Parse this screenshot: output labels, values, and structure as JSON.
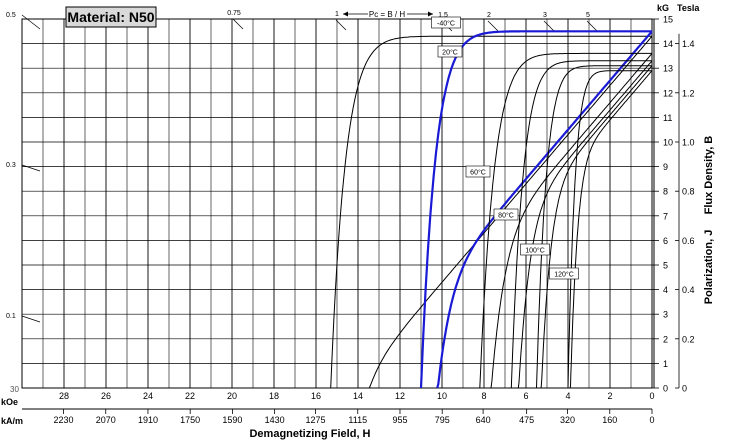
{
  "chart_data": {
    "type": "line",
    "title": "Material: N50",
    "x_axis": {
      "label": "Demagnetizing Field, H",
      "koe_unit": "kOe",
      "koe_range": [
        30,
        0
      ],
      "koe_ticks": [
        "28",
        "26",
        "24",
        "22",
        "20",
        "18",
        "16",
        "14",
        "12",
        "10",
        "8",
        "6",
        "4",
        "2",
        "0"
      ],
      "koe_partial_tick": "30",
      "kam_unit": "kA/m",
      "kam_ticks": [
        "2230",
        "2070",
        "1910",
        "1750",
        "1590",
        "1430",
        "1275",
        "1115",
        "955",
        "795",
        "640",
        "475",
        "320",
        "160",
        "0"
      ]
    },
    "y_axis": {
      "label": "Polarization, J     Flux Density, B",
      "kg_unit": "kG",
      "kg_range": [
        0,
        15
      ],
      "tesla_unit": "Tesla",
      "tesla_ticks": [
        "0",
        "0.2",
        "0.4",
        "0.6",
        "0.8",
        "1.0",
        "1.2",
        "1.4"
      ]
    },
    "left_scale": [
      "0.5",
      "0.3",
      "0.1"
    ],
    "permeance_label": "Pc = B / H",
    "permeance_lines": [
      {
        "label": "0.5",
        "pc": 0.5
      },
      {
        "label": "0.75",
        "pc": 0.75
      },
      {
        "label": "1",
        "pc": 1
      },
      {
        "label": "1.5",
        "pc": 1.5
      },
      {
        "label": "2",
        "pc": 2
      },
      {
        "label": "3",
        "pc": 3
      },
      {
        "label": "5",
        "pc": 5
      }
    ],
    "series": [
      {
        "name": "-40°C",
        "label": "-40°C",
        "color": "#000000",
        "Br": 14.3,
        "HcJ": 15.3,
        "HcB": 14.3
      },
      {
        "name": "20°C",
        "label": "20°C",
        "color": "#1a1ad6",
        "Br": 14.5,
        "HcJ": 11.0,
        "HcB": 10.9
      },
      {
        "name": "60°C",
        "label": "60°C",
        "color": "#000000",
        "Br": 13.6,
        "HcJ": 8.2,
        "HcB": null
      },
      {
        "name": "80°C",
        "label": "80°C",
        "color": "#000000",
        "Br": 13.3,
        "HcJ": 6.7,
        "HcB": null
      },
      {
        "name": "100°C",
        "label": "100°C",
        "color": "#000000",
        "Br": 13.1,
        "HcJ": 5.5,
        "HcB": null
      },
      {
        "name": "120°C",
        "label": "120°C",
        "color": "#000000",
        "Br": 12.9,
        "HcJ": 4.0,
        "HcB": null
      }
    ]
  }
}
